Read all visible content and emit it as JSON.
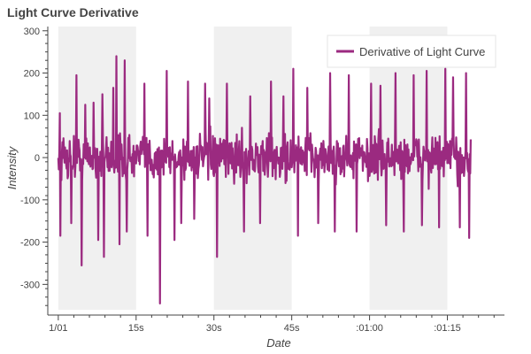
{
  "chart_data": {
    "type": "line",
    "title": "Light Curve Derivative",
    "xlabel": "Date",
    "ylabel": "Intensity",
    "x_range_seconds": [
      -1,
      86
    ],
    "ylim": [
      -360,
      310
    ],
    "x_ticks": [
      {
        "value": 0,
        "label": "1/01"
      },
      {
        "value": 15,
        "label": "15s"
      },
      {
        "value": 30,
        "label": "30s"
      },
      {
        "value": 45,
        "label": "45s"
      },
      {
        "value": 60,
        "label": ":01:00"
      },
      {
        "value": 75,
        "label": ":01:15"
      }
    ],
    "y_ticks": [
      300,
      200,
      100,
      0,
      -100,
      -200,
      -300
    ],
    "shaded_bands_seconds": [
      [
        0,
        15
      ],
      [
        30,
        45
      ],
      [
        60,
        75
      ]
    ],
    "legend": {
      "location": "top-right",
      "entries": [
        "Derivative of Light Curve"
      ]
    },
    "series": [
      {
        "name": "Derivative of Light Curve",
        "color": "#9b2a80",
        "sample_interval_seconds": 0.1,
        "x_start_seconds": 0,
        "x_end_seconds": 79.5,
        "typical_amplitude": [
          -70,
          70
        ],
        "extremes": {
          "max": 240,
          "min": -345
        },
        "spikes": [
          {
            "x": 0.3,
            "y": 105
          },
          {
            "x": 0.4,
            "y": -185
          },
          {
            "x": 2.5,
            "y": -155
          },
          {
            "x": 3.5,
            "y": 195
          },
          {
            "x": 4.5,
            "y": -255
          },
          {
            "x": 5.2,
            "y": 125
          },
          {
            "x": 6.8,
            "y": 130
          },
          {
            "x": 7.7,
            "y": -195
          },
          {
            "x": 8.5,
            "y": 150
          },
          {
            "x": 8.8,
            "y": -235
          },
          {
            "x": 10.6,
            "y": 165
          },
          {
            "x": 11.2,
            "y": 240
          },
          {
            "x": 11.8,
            "y": -205
          },
          {
            "x": 12.8,
            "y": 230
          },
          {
            "x": 13.2,
            "y": -175
          },
          {
            "x": 16.6,
            "y": 175
          },
          {
            "x": 17.2,
            "y": -185
          },
          {
            "x": 19.6,
            "y": -345
          },
          {
            "x": 20.9,
            "y": 205
          },
          {
            "x": 22.4,
            "y": -195
          },
          {
            "x": 23.7,
            "y": -155
          },
          {
            "x": 25.0,
            "y": 180
          },
          {
            "x": 26.2,
            "y": -145
          },
          {
            "x": 28.3,
            "y": 175
          },
          {
            "x": 29.1,
            "y": 140
          },
          {
            "x": 30.6,
            "y": -235
          },
          {
            "x": 32.5,
            "y": 175
          },
          {
            "x": 35.8,
            "y": -175
          },
          {
            "x": 37.0,
            "y": 145
          },
          {
            "x": 38.9,
            "y": -155
          },
          {
            "x": 41.0,
            "y": 180
          },
          {
            "x": 43.4,
            "y": 145
          },
          {
            "x": 45.3,
            "y": 210
          },
          {
            "x": 46.2,
            "y": -185
          },
          {
            "x": 48.0,
            "y": 165
          },
          {
            "x": 50.1,
            "y": -155
          },
          {
            "x": 52.4,
            "y": 200
          },
          {
            "x": 53.3,
            "y": -175
          },
          {
            "x": 56.0,
            "y": 195
          },
          {
            "x": 57.5,
            "y": -175
          },
          {
            "x": 60.3,
            "y": 175
          },
          {
            "x": 62.1,
            "y": 170
          },
          {
            "x": 63.2,
            "y": -160
          },
          {
            "x": 65.0,
            "y": 200
          },
          {
            "x": 66.6,
            "y": -175
          },
          {
            "x": 68.5,
            "y": 195
          },
          {
            "x": 70.1,
            "y": -160
          },
          {
            "x": 71.0,
            "y": 205
          },
          {
            "x": 73.4,
            "y": -165
          },
          {
            "x": 74.6,
            "y": 210
          },
          {
            "x": 76.1,
            "y": 190
          },
          {
            "x": 77.4,
            "y": -165
          },
          {
            "x": 78.6,
            "y": 200
          },
          {
            "x": 79.2,
            "y": -190
          }
        ]
      }
    ]
  }
}
